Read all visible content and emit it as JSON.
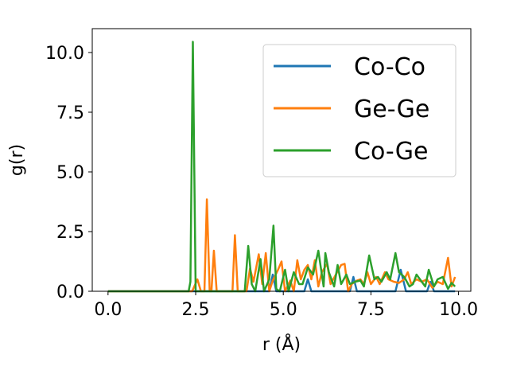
{
  "chart_data": {
    "type": "line",
    "xlabel": "r (Å)",
    "ylabel": "g(r)",
    "xlim": [
      -0.45,
      10.35
    ],
    "ylim": [
      0,
      11
    ],
    "xticks": [
      0.0,
      2.5,
      5.0,
      7.5,
      10.0
    ],
    "xtick_labels": [
      "0.0",
      "2.5",
      "5.0",
      "7.5",
      "10.0"
    ],
    "yticks": [
      0.0,
      2.5,
      5.0,
      7.5,
      10.0
    ],
    "ytick_labels": [
      "0.0",
      "2.5",
      "5.0",
      "7.5",
      "10.0"
    ],
    "grid": false,
    "legend_position": "upper right",
    "series": [
      {
        "name": "Co-Co",
        "color": "#1f77b4",
        "points": [
          [
            0.0,
            0
          ],
          [
            2.3,
            0
          ],
          [
            4.6,
            0
          ],
          [
            4.7,
            0.7
          ],
          [
            4.8,
            0
          ],
          [
            5.6,
            0
          ],
          [
            5.7,
            0.5
          ],
          [
            5.8,
            0
          ],
          [
            6.9,
            0
          ],
          [
            7.0,
            0.6
          ],
          [
            7.1,
            0
          ],
          [
            8.2,
            0
          ],
          [
            8.35,
            0.9
          ],
          [
            8.5,
            0
          ],
          [
            9.1,
            0
          ],
          [
            9.2,
            0.4
          ],
          [
            9.3,
            0
          ],
          [
            9.9,
            0
          ]
        ]
      },
      {
        "name": "Ge-Ge",
        "color": "#ff7f0e",
        "points": [
          [
            0.0,
            0
          ],
          [
            2.4,
            0
          ],
          [
            2.55,
            0.5
          ],
          [
            2.65,
            0
          ],
          [
            2.75,
            0
          ],
          [
            2.82,
            3.85
          ],
          [
            2.9,
            0
          ],
          [
            2.95,
            0
          ],
          [
            3.02,
            1.7
          ],
          [
            3.1,
            0
          ],
          [
            3.55,
            0
          ],
          [
            3.62,
            2.35
          ],
          [
            3.7,
            0
          ],
          [
            3.95,
            0
          ],
          [
            4.05,
            0.95
          ],
          [
            4.15,
            0.4
          ],
          [
            4.3,
            1.55
          ],
          [
            4.4,
            0.3
          ],
          [
            4.5,
            1.6
          ],
          [
            4.6,
            0
          ],
          [
            4.7,
            0.45
          ],
          [
            4.85,
            0.9
          ],
          [
            4.95,
            1.25
          ],
          [
            5.05,
            0
          ],
          [
            5.2,
            0.45
          ],
          [
            5.3,
            0
          ],
          [
            5.4,
            1.3
          ],
          [
            5.5,
            0.5
          ],
          [
            5.6,
            0.9
          ],
          [
            5.7,
            1.1
          ],
          [
            5.8,
            0.5
          ],
          [
            5.9,
            1.3
          ],
          [
            6.0,
            0.2
          ],
          [
            6.1,
            0.8
          ],
          [
            6.25,
            1.15
          ],
          [
            6.35,
            0.3
          ],
          [
            6.5,
            0.7
          ],
          [
            6.65,
            1.1
          ],
          [
            6.75,
            1.15
          ],
          [
            6.85,
            0
          ],
          [
            6.95,
            0.3
          ],
          [
            7.1,
            0.45
          ],
          [
            7.2,
            0.5
          ],
          [
            7.3,
            0.3
          ],
          [
            7.4,
            0.8
          ],
          [
            7.5,
            0.3
          ],
          [
            7.65,
            0.6
          ],
          [
            7.75,
            0.3
          ],
          [
            7.9,
            0.8
          ],
          [
            8.0,
            0.5
          ],
          [
            8.15,
            0.4
          ],
          [
            8.3,
            0.35
          ],
          [
            8.45,
            0.5
          ],
          [
            8.55,
            0.8
          ],
          [
            8.65,
            0.3
          ],
          [
            8.8,
            0.5
          ],
          [
            8.95,
            0.4
          ],
          [
            9.1,
            0.5
          ],
          [
            9.25,
            0.15
          ],
          [
            9.4,
            0.4
          ],
          [
            9.55,
            0.3
          ],
          [
            9.7,
            1.4
          ],
          [
            9.8,
            0.2
          ],
          [
            9.9,
            0.6
          ]
        ]
      },
      {
        "name": "Co-Ge",
        "color": "#2ca02c",
        "points": [
          [
            0.0,
            0
          ],
          [
            2.3,
            0
          ],
          [
            2.35,
            0.4
          ],
          [
            2.42,
            10.45
          ],
          [
            2.5,
            0
          ],
          [
            3.9,
            0
          ],
          [
            4.0,
            1.9
          ],
          [
            4.1,
            0.3
          ],
          [
            4.2,
            0
          ],
          [
            4.35,
            1.35
          ],
          [
            4.45,
            0
          ],
          [
            4.6,
            0.5
          ],
          [
            4.72,
            2.75
          ],
          [
            4.8,
            0.1
          ],
          [
            4.9,
            0
          ],
          [
            5.05,
            0.9
          ],
          [
            5.15,
            0
          ],
          [
            5.3,
            0.8
          ],
          [
            5.45,
            0.3
          ],
          [
            5.55,
            0.3
          ],
          [
            5.7,
            1.0
          ],
          [
            5.85,
            0.7
          ],
          [
            6.0,
            1.7
          ],
          [
            6.15,
            0.2
          ],
          [
            6.2,
            1.6
          ],
          [
            6.3,
            0.8
          ],
          [
            6.45,
            0.2
          ],
          [
            6.55,
            1.1
          ],
          [
            6.65,
            0.3
          ],
          [
            6.8,
            0.7
          ],
          [
            6.9,
            0.3
          ],
          [
            7.05,
            0.4
          ],
          [
            7.2,
            0.45
          ],
          [
            7.3,
            0.2
          ],
          [
            7.45,
            1.5
          ],
          [
            7.6,
            0.5
          ],
          [
            7.7,
            0.6
          ],
          [
            7.8,
            0.4
          ],
          [
            7.95,
            0.8
          ],
          [
            8.05,
            0.5
          ],
          [
            8.2,
            1.6
          ],
          [
            8.3,
            0.8
          ],
          [
            8.45,
            0.6
          ],
          [
            8.6,
            0.2
          ],
          [
            8.7,
            0.3
          ],
          [
            8.8,
            0.7
          ],
          [
            8.9,
            0.5
          ],
          [
            9.05,
            0.2
          ],
          [
            9.15,
            0.9
          ],
          [
            9.3,
            0.2
          ],
          [
            9.4,
            0.5
          ],
          [
            9.55,
            0.6
          ],
          [
            9.7,
            0.1
          ],
          [
            9.8,
            0.35
          ],
          [
            9.9,
            0.2
          ]
        ]
      }
    ]
  }
}
